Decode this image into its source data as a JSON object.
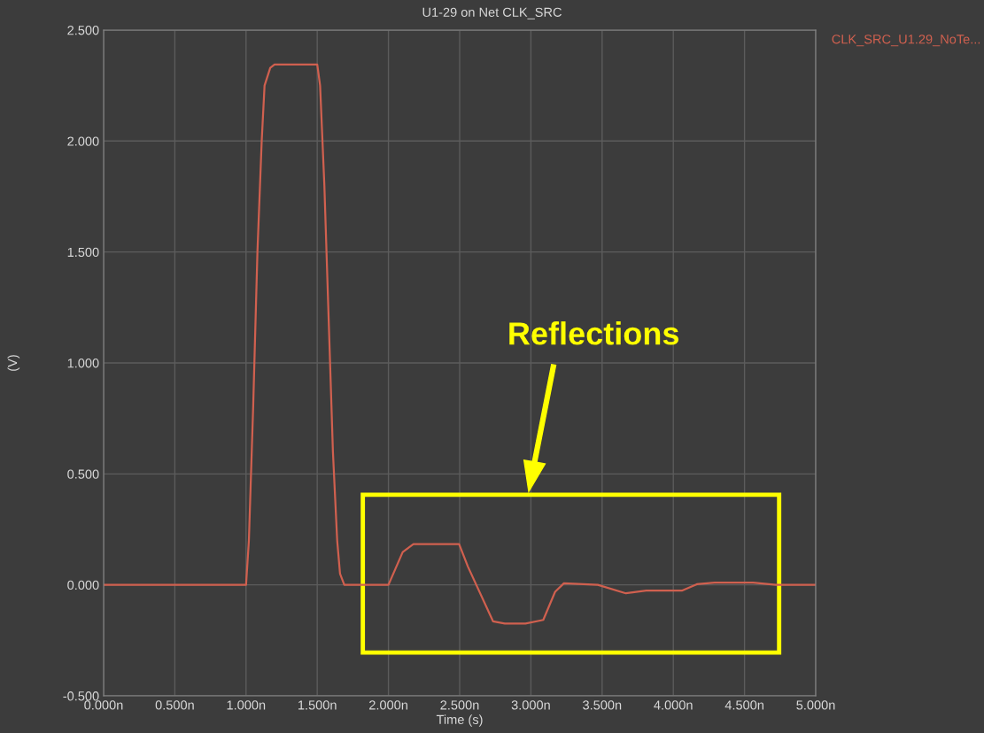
{
  "chart_data": {
    "type": "line",
    "title": "U1-29 on Net CLK_SRC",
    "xlabel": "Time (s)",
    "ylabel": "(V)",
    "series": [
      {
        "name": "CLK_SRC_U1.29_NoTe...",
        "color": "#d0604f",
        "x": [
          0,
          1.0,
          1.02,
          1.05,
          1.08,
          1.11,
          1.13,
          1.17,
          1.2,
          1.5,
          1.52,
          1.55,
          1.58,
          1.61,
          1.64,
          1.66,
          1.69,
          2.0,
          2.1,
          2.175,
          2.496,
          2.558,
          2.734,
          2.817,
          2.962,
          3.087,
          3.17,
          3.232,
          3.47,
          3.667,
          3.81,
          4.06,
          4.165,
          4.29,
          4.56,
          4.72,
          5.0
        ],
        "values": [
          0,
          0,
          0.2,
          0.8,
          1.5,
          2.0,
          2.25,
          2.33,
          2.345,
          2.345,
          2.25,
          1.8,
          1.2,
          0.6,
          0.2,
          0.05,
          0,
          0,
          0.148,
          0.184,
          0.184,
          0.082,
          -0.164,
          -0.174,
          -0.174,
          -0.158,
          -0.031,
          0.007,
          0,
          -0.038,
          -0.026,
          -0.026,
          0.003,
          0.01,
          0.01,
          0,
          0
        ]
      }
    ],
    "xlim": [
      0,
      5
    ],
    "ylim": [
      -0.5,
      2.5
    ],
    "xticks": [
      {
        "value": 0,
        "label": "0.000n"
      },
      {
        "value": 0.5,
        "label": "0.500n"
      },
      {
        "value": 1,
        "label": "1.000n"
      },
      {
        "value": 1.5,
        "label": "1.500n"
      },
      {
        "value": 2,
        "label": "2.000n"
      },
      {
        "value": 2.5,
        "label": "2.500n"
      },
      {
        "value": 3,
        "label": "3.000n"
      },
      {
        "value": 3.5,
        "label": "3.500n"
      },
      {
        "value": 4,
        "label": "4.000n"
      },
      {
        "value": 4.5,
        "label": "4.500n"
      },
      {
        "value": 5,
        "label": "5.000n"
      }
    ],
    "yticks": [
      {
        "value": -0.5,
        "label": "-0.500"
      },
      {
        "value": 0,
        "label": "0.000"
      },
      {
        "value": 0.5,
        "label": "0.500"
      },
      {
        "value": 1,
        "label": "1.000"
      },
      {
        "value": 1.5,
        "label": "1.500"
      },
      {
        "value": 2,
        "label": "2.000"
      },
      {
        "value": 2.5,
        "label": "2.500"
      }
    ],
    "annotations": [
      "Reflections"
    ],
    "grid": true,
    "legend": "top right",
    "marker": "none",
    "line_style": "solid"
  }
}
